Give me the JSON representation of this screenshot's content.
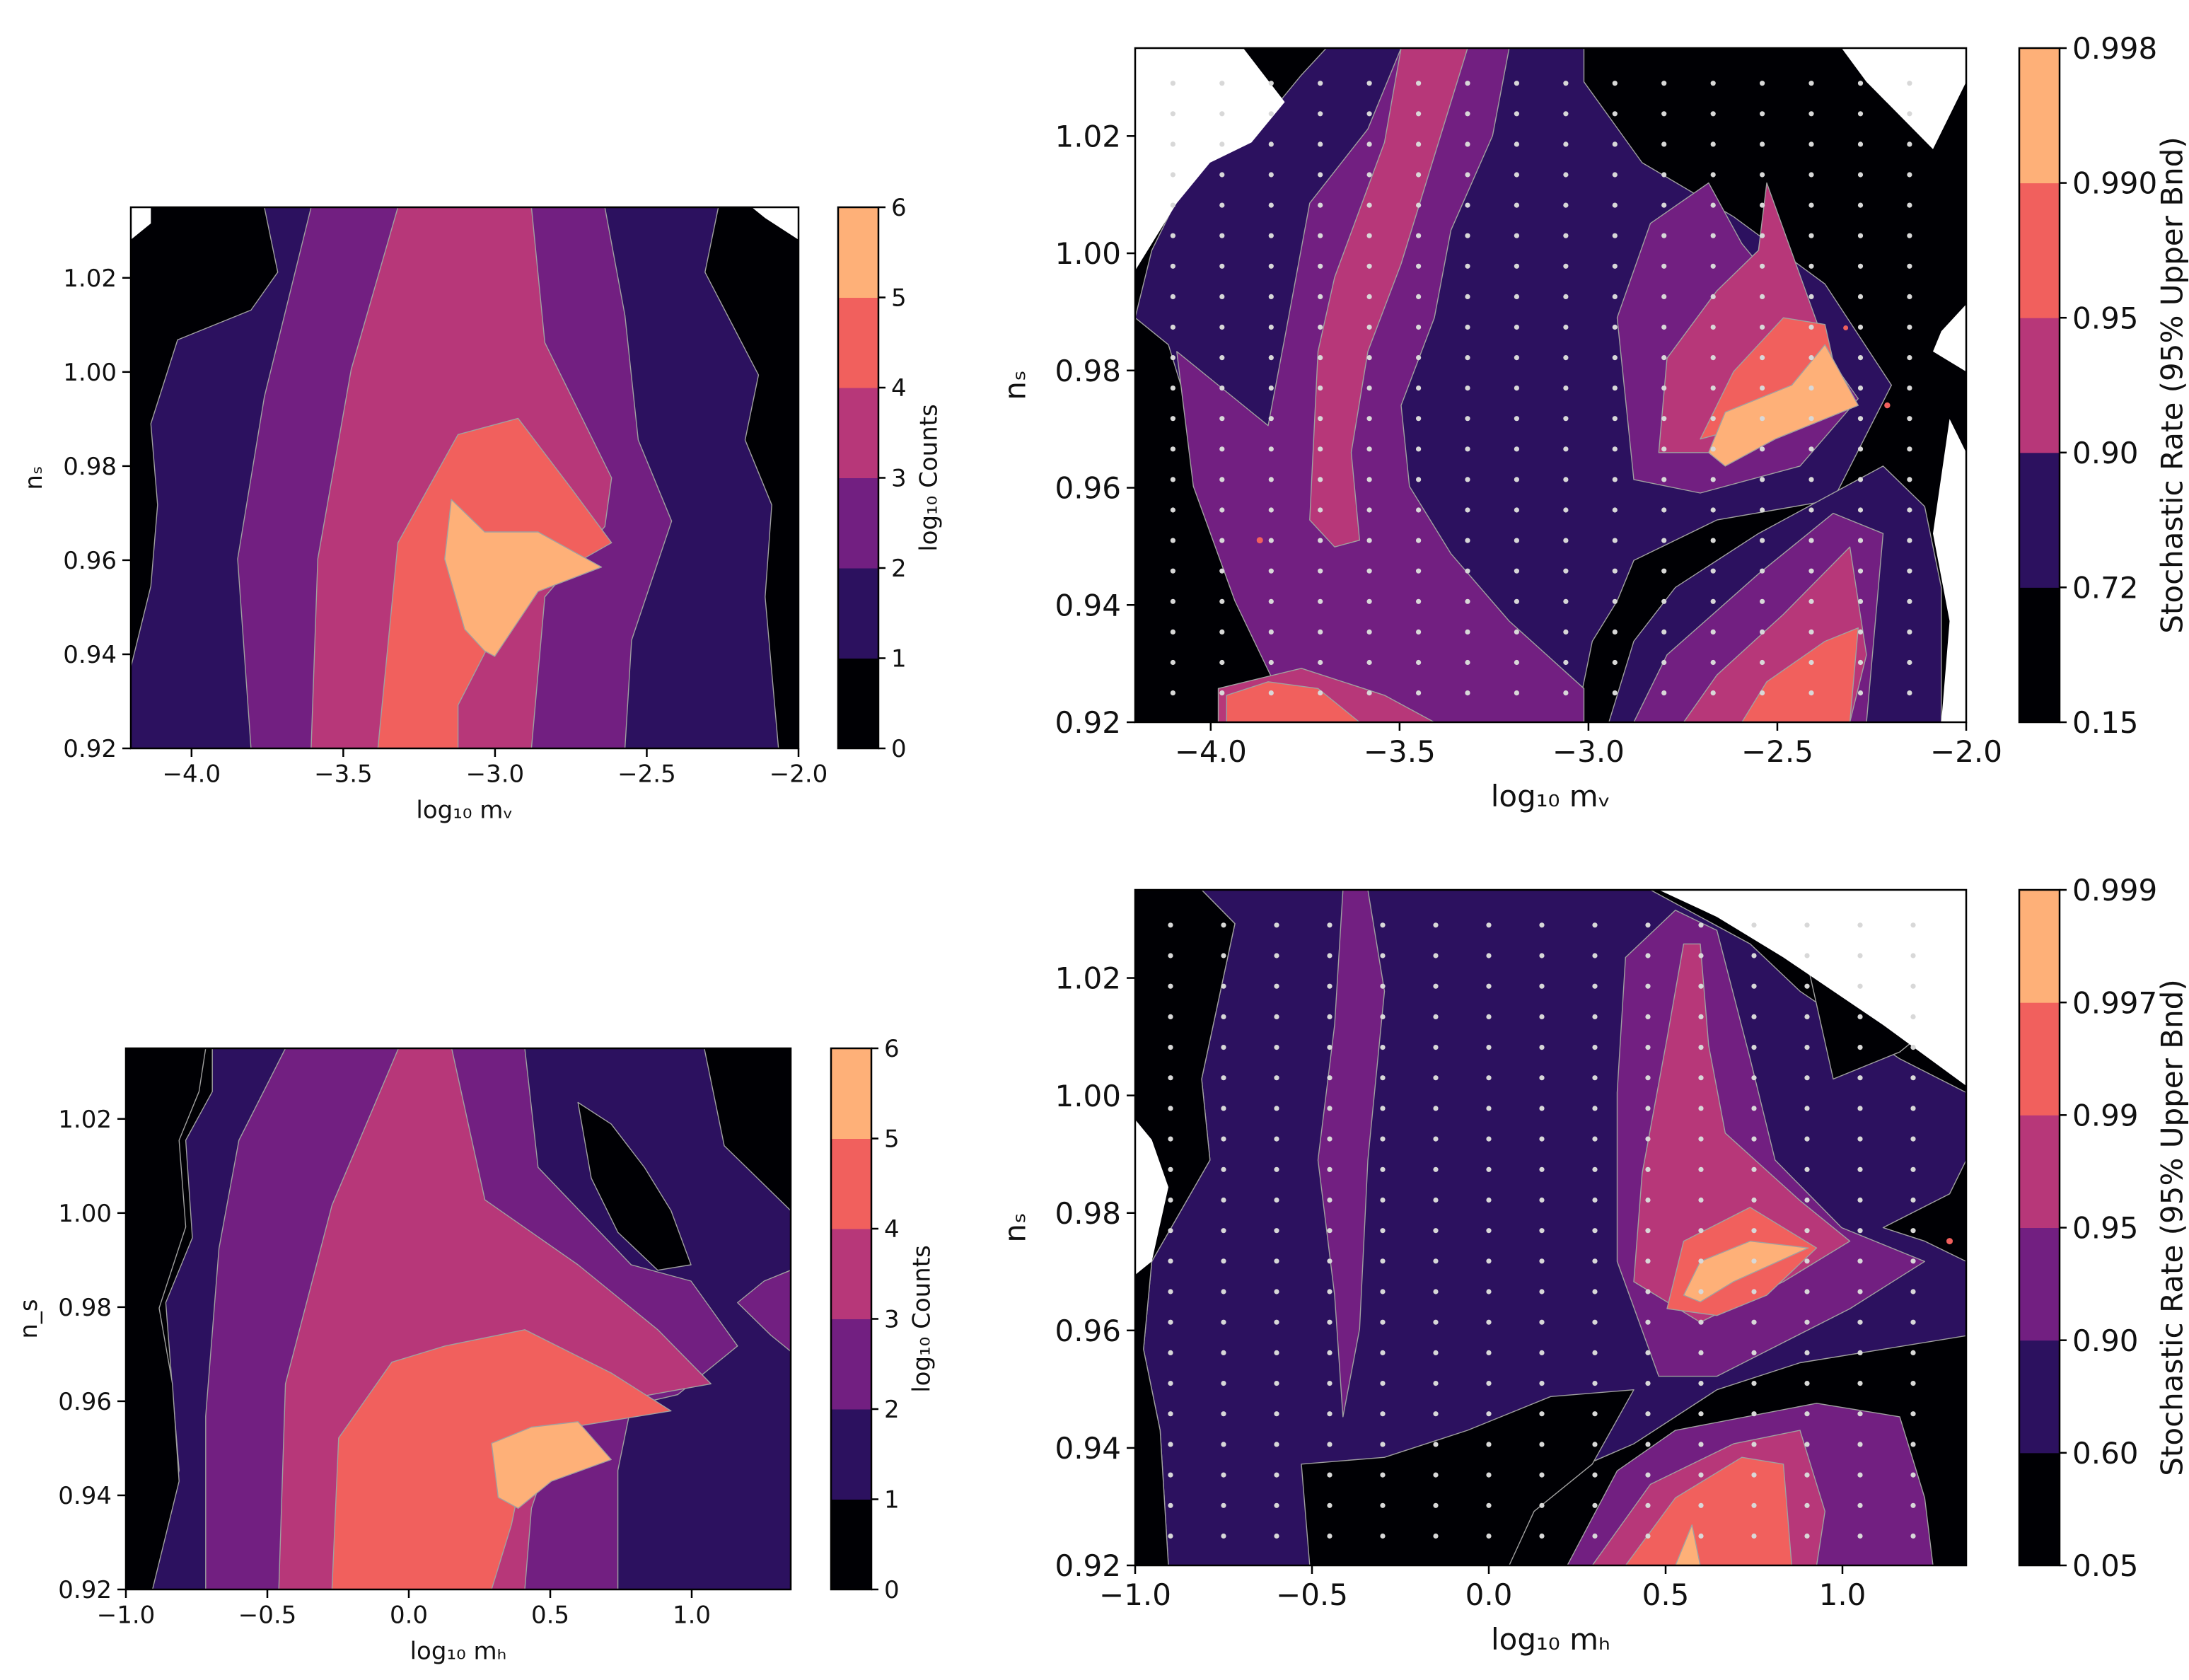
{
  "colors": {
    "level_0": "#000004",
    "level_1": "#2c115f",
    "level_2": "#721f81",
    "level_3": "#b73779",
    "level_4": "#f1605d",
    "level_5": "#feb078",
    "dots": "#d8d8d8",
    "contour_line": "#a0a0a0"
  },
  "chart_data": [
    {
      "id": "top-left",
      "type": "heatmap",
      "subtype": "filled-contour",
      "xlabel": "log₁₀ mᵥ",
      "ylabel": "nₛ",
      "xlim": [
        -4.2,
        -2.0
      ],
      "ylim": [
        0.92,
        1.035
      ],
      "xticks": [
        -4.0,
        -3.5,
        -3.0,
        -2.5,
        -2.0
      ],
      "xtick_labels": [
        "−4.0",
        "−3.5",
        "−3.0",
        "−2.5",
        "−2.0"
      ],
      "yticks": [
        0.92,
        0.94,
        0.96,
        0.98,
        1.0,
        1.02
      ],
      "ytick_labels": [
        "0.92",
        "0.94",
        "0.96",
        "0.98",
        "1.00",
        "1.02"
      ],
      "colorbar": {
        "label": "log₁₀ Counts",
        "ticks": [
          "0",
          "1",
          "2",
          "3",
          "4",
          "5",
          "6"
        ]
      },
      "peak": {
        "x": -2.95,
        "y": 0.955
      },
      "white_corners": [
        [
          -4.2,
          1.035
        ],
        [
          -2.0,
          1.035
        ]
      ]
    },
    {
      "id": "top-right",
      "type": "heatmap",
      "subtype": "filled-contour",
      "xlabel": "log₁₀ mᵥ",
      "ylabel": "nₛ",
      "xlim": [
        -4.2,
        -2.0
      ],
      "ylim": [
        0.92,
        1.035
      ],
      "xticks": [
        -4.0,
        -3.5,
        -3.0,
        -2.5,
        -2.0
      ],
      "xtick_labels": [
        "−4.0",
        "−3.5",
        "−3.0",
        "−2.5",
        "−2.0"
      ],
      "yticks": [
        0.92,
        0.94,
        0.96,
        0.98,
        1.0,
        1.02
      ],
      "ytick_labels": [
        "0.92",
        "0.94",
        "0.96",
        "0.98",
        "1.00",
        "1.02"
      ],
      "colorbar": {
        "label": "Stochastic Rate (95% Upper Bnd)",
        "ticks": [
          "0.15",
          "0.72",
          "0.90",
          "0.95",
          "0.990",
          "0.998"
        ]
      },
      "grid_points": {
        "x_from": -4.1,
        "x_to": -2.1,
        "x_step": 0.13,
        "y_from": 0.925,
        "y_to": 1.03,
        "y_step": 0.0052
      }
    },
    {
      "id": "bottom-left",
      "type": "heatmap",
      "subtype": "filled-contour",
      "xlabel": "log₁₀ mₕ",
      "ylabel": "n_s",
      "xlim": [
        -1.0,
        1.35
      ],
      "ylim": [
        0.92,
        1.035
      ],
      "xticks": [
        -1.0,
        -0.5,
        0.0,
        0.5,
        1.0
      ],
      "xtick_labels": [
        "−1.0",
        "−0.5",
        "0.0",
        "0.5",
        "1.0"
      ],
      "yticks": [
        0.92,
        0.94,
        0.96,
        0.98,
        1.0,
        1.02
      ],
      "ytick_labels": [
        "0.92",
        "0.94",
        "0.96",
        "0.98",
        "1.00",
        "1.02"
      ],
      "colorbar": {
        "label": "log₁₀ Counts",
        "ticks": [
          "0",
          "1",
          "2",
          "3",
          "4",
          "5",
          "6"
        ]
      },
      "peak": {
        "x": 0.45,
        "y": 0.957
      }
    },
    {
      "id": "bottom-right",
      "type": "heatmap",
      "subtype": "filled-contour",
      "xlabel": "log₁₀ mₕ",
      "ylabel": "nₛ",
      "xlim": [
        -1.0,
        1.35
      ],
      "ylim": [
        0.92,
        1.035
      ],
      "xticks": [
        -1.0,
        -0.5,
        0.0,
        0.5,
        1.0
      ],
      "xtick_labels": [
        "−1.0",
        "−0.5",
        "0.0",
        "0.5",
        "1.0"
      ],
      "yticks": [
        0.92,
        0.94,
        0.96,
        0.98,
        1.0,
        1.02
      ],
      "ytick_labels": [
        "0.92",
        "0.94",
        "0.96",
        "0.98",
        "1.00",
        "1.02"
      ],
      "colorbar": {
        "label": "Stochastic Rate (95% Upper Bnd)",
        "ticks": [
          "0.05",
          "0.60",
          "0.90",
          "0.95",
          "0.99",
          "0.997",
          "0.999"
        ]
      },
      "grid_points": {
        "x_from": -0.9,
        "x_to": 1.3,
        "x_step": 0.15,
        "y_from": 0.925,
        "y_to": 1.03,
        "y_step": 0.0052
      }
    }
  ]
}
